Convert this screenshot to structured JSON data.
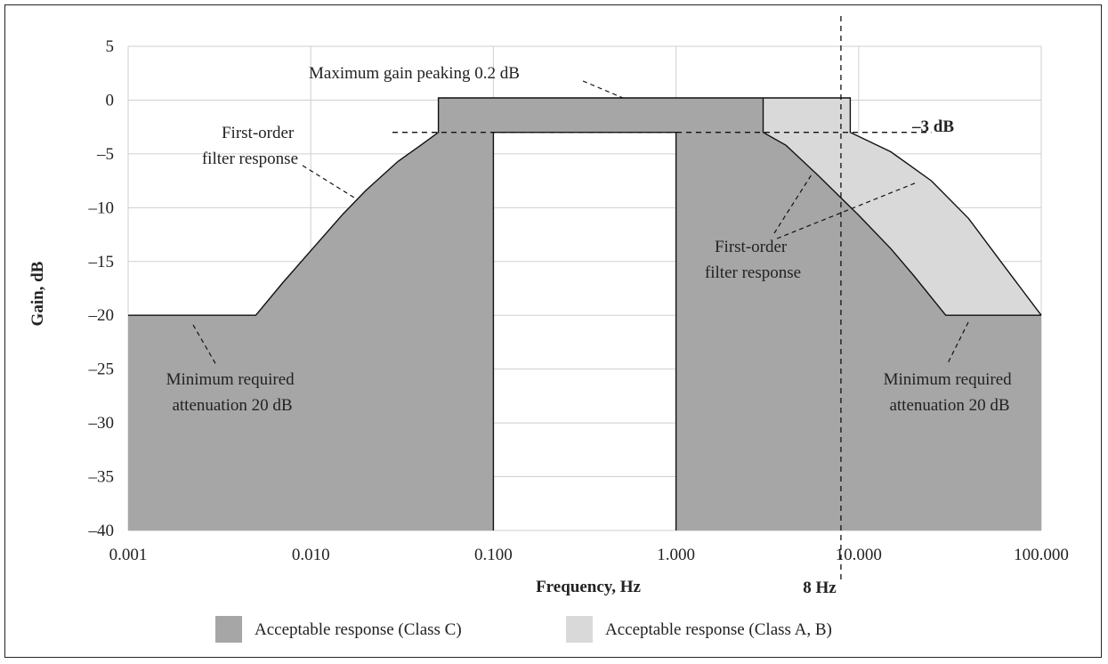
{
  "chart_data": {
    "type": "area",
    "xscale": "log",
    "xlabel": "Frequency, Hz",
    "ylabel": "Gain, dB",
    "xlim": [
      0.001,
      100
    ],
    "ylim": [
      -40,
      5
    ],
    "grid": true,
    "xticks": [
      {
        "v": 0.001,
        "label": "0.001"
      },
      {
        "v": 0.01,
        "label": "0.010"
      },
      {
        "v": 0.1,
        "label": "0.100"
      },
      {
        "v": 1,
        "label": "1.000"
      },
      {
        "v": 10,
        "label": "10.000"
      },
      {
        "v": 100,
        "label": "100.000"
      }
    ],
    "yticks": [
      {
        "v": 5,
        "label": "5"
      },
      {
        "v": 0,
        "label": "0"
      },
      {
        "v": -5,
        "label": "–5"
      },
      {
        "v": -10,
        "label": "–10"
      },
      {
        "v": -15,
        "label": "–15"
      },
      {
        "v": -20,
        "label": "–20"
      },
      {
        "v": -25,
        "label": "–25"
      },
      {
        "v": -30,
        "label": "–30"
      },
      {
        "v": -35,
        "label": "–35"
      },
      {
        "v": -40,
        "label": "–40"
      }
    ],
    "series": [
      {
        "name": "Acceptable response (Class C)",
        "color": "#a6a6a6",
        "regions": [
          {
            "points": [
              [
                0.001,
                -40
              ],
              [
                0.001,
                -20
              ],
              [
                0.005,
                -20
              ],
              [
                0.007,
                -17
              ],
              [
                0.01,
                -14
              ],
              [
                0.015,
                -10.6
              ],
              [
                0.02,
                -8.4
              ],
              [
                0.03,
                -5.7
              ],
              [
                0.04,
                -4.2
              ],
              [
                0.05,
                -3
              ],
              [
                0.05,
                0.2
              ],
              [
                3,
                0.2
              ],
              [
                3,
                -3
              ],
              [
                4,
                -4.2
              ],
              [
                6,
                -7
              ],
              [
                10,
                -10.7
              ],
              [
                15,
                -13.8
              ],
              [
                20,
                -16.3
              ],
              [
                30,
                -20
              ],
              [
                100,
                -20
              ],
              [
                100,
                -40
              ],
              [
                1,
                -40
              ],
              [
                1,
                -3
              ],
              [
                0.1,
                -3
              ],
              [
                0.1,
                -40
              ]
            ]
          }
        ]
      },
      {
        "name": "Acceptable response (Class A, B)",
        "color": "#d9d9d9",
        "regions": [
          {
            "points": [
              [
                2.9,
                0.2
              ],
              [
                9,
                0.2
              ],
              [
                9,
                -3
              ],
              [
                15,
                -4.8
              ],
              [
                25,
                -7.5
              ],
              [
                40,
                -11
              ],
              [
                60,
                -15
              ],
              [
                100,
                -20
              ],
              [
                30,
                -20
              ],
              [
                20,
                -16.3
              ],
              [
                15,
                -13.8
              ],
              [
                10,
                -10.7
              ],
              [
                6,
                -7
              ],
              [
                4,
                -4.2
              ],
              [
                3,
                -3
              ]
            ]
          }
        ]
      }
    ],
    "reference_lines": [
      {
        "type": "horizontal",
        "y": -3,
        "from": 0.028,
        "to": 25,
        "label": "–3 dB"
      },
      {
        "type": "vertical",
        "x": 8,
        "label": "8 Hz"
      }
    ],
    "annotations": [
      {
        "text": "Maximum gain peaking 0.2 dB"
      },
      {
        "text": "First-order filter response"
      },
      {
        "text": "First-order filter response"
      },
      {
        "text": "Minimum required attenuation 20 dB"
      },
      {
        "text": "Minimum required attenuation 20 dB"
      }
    ],
    "legend": {
      "position": "bottom",
      "items": [
        {
          "label": "Acceptable response (Class C)",
          "color": "#a6a6a6"
        },
        {
          "label": "Acceptable response (Class A, B)",
          "color": "#d9d9d9"
        }
      ]
    }
  }
}
